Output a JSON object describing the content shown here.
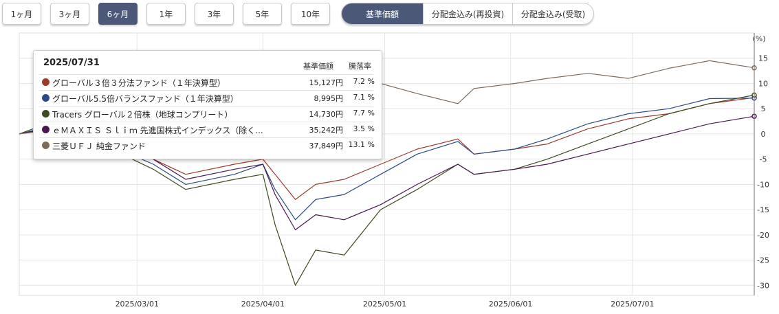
{
  "period_tabs": [
    {
      "label": "1ヶ月",
      "active": false
    },
    {
      "label": "3ヶ月",
      "active": false
    },
    {
      "label": "6ヶ月",
      "active": true
    },
    {
      "label": "1年",
      "active": false
    },
    {
      "label": "3年",
      "active": false
    },
    {
      "label": "5年",
      "active": false
    },
    {
      "label": "10年",
      "active": false
    }
  ],
  "mode_tabs": [
    {
      "label": "基準価額",
      "active": true
    },
    {
      "label": "分配金込み(再投資)",
      "active": false
    },
    {
      "label": "分配金込み(受取)",
      "active": false
    }
  ],
  "tooltip": {
    "date": "2025/07/31",
    "col_price": "基準価額",
    "col_drawdown": "騰落率",
    "rows": [
      {
        "name": "グローバル３倍３分法ファンド（１年決算型）",
        "price": "15,127円",
        "drawdown": "7.2 %",
        "color": "#9e3b2b"
      },
      {
        "name": "グローバル5.5倍バランスファンド（１年決算型）",
        "price": "8,995円",
        "drawdown": "7.1 %",
        "color": "#2b4a87"
      },
      {
        "name": "Tracers グローバル２倍株（地球コンプリート）",
        "price": "14,730円",
        "drawdown": "7.7 %",
        "color": "#3d4a1e"
      },
      {
        "name": "ｅＭＡＸＩＳ Ｓｌｉｍ 先進国株式インデックス（除く...",
        "price": "35,242円",
        "drawdown": "3.5 %",
        "color": "#4a1650"
      },
      {
        "name": "三菱ＵＦＪ 純金ファンド",
        "price": "37,849円",
        "drawdown": "13.1 %",
        "color": "#7d6a5a"
      }
    ]
  },
  "chart_data": {
    "type": "line",
    "ylabel": "(%)",
    "y_ticks": [
      "15",
      "10",
      "5",
      "0",
      "-5",
      "-10",
      "-15",
      "-20",
      "-25",
      "-30"
    ],
    "ylim": [
      -32,
      20
    ],
    "xlim": [
      "2025-01-31",
      "2025-07-31"
    ],
    "x_ticks": [
      "2025/03/01",
      "2025/04/01",
      "2025/05/01",
      "2025/06/01",
      "2025/07/01"
    ],
    "x_tick_dates": [
      "2025-03-01",
      "2025-04-01",
      "2025-05-01",
      "2025-06-01",
      "2025-07-01"
    ],
    "grid": true,
    "series": [
      {
        "name": "グローバル３倍３分法ファンド（１年決算型）",
        "color": "#9e3b2b",
        "points": [
          [
            "2025-01-31",
            0
          ],
          [
            "2025-02-10",
            1.5
          ],
          [
            "2025-02-20",
            -1
          ],
          [
            "2025-03-05",
            -5
          ],
          [
            "2025-03-13",
            -8
          ],
          [
            "2025-03-25",
            -6
          ],
          [
            "2025-04-01",
            -5
          ],
          [
            "2025-04-04",
            -8
          ],
          [
            "2025-04-09",
            -13
          ],
          [
            "2025-04-14",
            -10
          ],
          [
            "2025-04-21",
            -9
          ],
          [
            "2025-04-30",
            -6
          ],
          [
            "2025-05-09",
            -3
          ],
          [
            "2025-05-19",
            -1
          ],
          [
            "2025-05-23",
            -4
          ],
          [
            "2025-06-02",
            -3
          ],
          [
            "2025-06-10",
            -2
          ],
          [
            "2025-06-20",
            1
          ],
          [
            "2025-06-30",
            3
          ],
          [
            "2025-07-10",
            4
          ],
          [
            "2025-07-20",
            6
          ],
          [
            "2025-07-31",
            7.2
          ]
        ]
      },
      {
        "name": "グローバル5.5倍バランスファンド（１年決算型）",
        "color": "#2b4a87",
        "points": [
          [
            "2025-01-31",
            0
          ],
          [
            "2025-02-10",
            2
          ],
          [
            "2025-02-20",
            -1.5
          ],
          [
            "2025-03-05",
            -6
          ],
          [
            "2025-03-13",
            -10
          ],
          [
            "2025-03-25",
            -8
          ],
          [
            "2025-04-01",
            -6
          ],
          [
            "2025-04-04",
            -11
          ],
          [
            "2025-04-09",
            -17
          ],
          [
            "2025-04-14",
            -13
          ],
          [
            "2025-04-21",
            -12
          ],
          [
            "2025-04-30",
            -8
          ],
          [
            "2025-05-09",
            -4
          ],
          [
            "2025-05-19",
            -1.5
          ],
          [
            "2025-05-23",
            -4
          ],
          [
            "2025-06-02",
            -3
          ],
          [
            "2025-06-10",
            -1
          ],
          [
            "2025-06-20",
            2
          ],
          [
            "2025-06-30",
            4
          ],
          [
            "2025-07-10",
            5
          ],
          [
            "2025-07-20",
            7
          ],
          [
            "2025-07-31",
            7.1
          ]
        ]
      },
      {
        "name": "Tracers グローバル２倍株（地球コンプリート）",
        "color": "#3d4a1e",
        "points": [
          [
            "2025-01-31",
            0
          ],
          [
            "2025-02-10",
            3
          ],
          [
            "2025-02-20",
            -2
          ],
          [
            "2025-03-05",
            -7
          ],
          [
            "2025-03-13",
            -11
          ],
          [
            "2025-03-25",
            -9
          ],
          [
            "2025-04-01",
            -8
          ],
          [
            "2025-04-04",
            -18
          ],
          [
            "2025-04-09",
            -30
          ],
          [
            "2025-04-14",
            -23
          ],
          [
            "2025-04-21",
            -24
          ],
          [
            "2025-04-30",
            -15
          ],
          [
            "2025-05-09",
            -11
          ],
          [
            "2025-05-19",
            -6
          ],
          [
            "2025-05-23",
            -8
          ],
          [
            "2025-06-02",
            -7
          ],
          [
            "2025-06-10",
            -5
          ],
          [
            "2025-06-20",
            -2
          ],
          [
            "2025-06-30",
            1
          ],
          [
            "2025-07-10",
            4
          ],
          [
            "2025-07-20",
            6
          ],
          [
            "2025-07-31",
            7.7
          ]
        ]
      },
      {
        "name": "ｅＭＡＸＩＳ Ｓｌｉｍ 先進国株式インデックス（除く...",
        "color": "#4a1650",
        "points": [
          [
            "2025-01-31",
            0
          ],
          [
            "2025-02-10",
            1.5
          ],
          [
            "2025-02-20",
            -1
          ],
          [
            "2025-03-05",
            -5
          ],
          [
            "2025-03-13",
            -9
          ],
          [
            "2025-03-25",
            -7
          ],
          [
            "2025-04-01",
            -6
          ],
          [
            "2025-04-04",
            -12
          ],
          [
            "2025-04-09",
            -19
          ],
          [
            "2025-04-14",
            -16
          ],
          [
            "2025-04-21",
            -17
          ],
          [
            "2025-04-30",
            -14
          ],
          [
            "2025-05-09",
            -10
          ],
          [
            "2025-05-19",
            -6
          ],
          [
            "2025-05-23",
            -8
          ],
          [
            "2025-06-02",
            -7
          ],
          [
            "2025-06-10",
            -6
          ],
          [
            "2025-06-20",
            -4
          ],
          [
            "2025-06-30",
            -2
          ],
          [
            "2025-07-10",
            0
          ],
          [
            "2025-07-20",
            2
          ],
          [
            "2025-07-31",
            3.5
          ]
        ]
      },
      {
        "name": "三菱ＵＦＪ 純金ファンド",
        "color": "#7d6a5a",
        "points": [
          [
            "2025-01-31",
            0
          ],
          [
            "2025-02-10",
            1
          ],
          [
            "2025-02-20",
            0.5
          ],
          [
            "2025-03-05",
            -1
          ],
          [
            "2025-03-13",
            2
          ],
          [
            "2025-03-25",
            4
          ],
          [
            "2025-04-01",
            5
          ],
          [
            "2025-04-04",
            6
          ],
          [
            "2025-04-09",
            3
          ],
          [
            "2025-04-14",
            7
          ],
          [
            "2025-04-21",
            9
          ],
          [
            "2025-04-30",
            10
          ],
          [
            "2025-05-09",
            8
          ],
          [
            "2025-05-19",
            6
          ],
          [
            "2025-05-23",
            9
          ],
          [
            "2025-06-02",
            10
          ],
          [
            "2025-06-10",
            11
          ],
          [
            "2025-06-20",
            12
          ],
          [
            "2025-06-30",
            11
          ],
          [
            "2025-07-10",
            13
          ],
          [
            "2025-07-20",
            14.5
          ],
          [
            "2025-07-31",
            13.1
          ]
        ]
      }
    ]
  }
}
